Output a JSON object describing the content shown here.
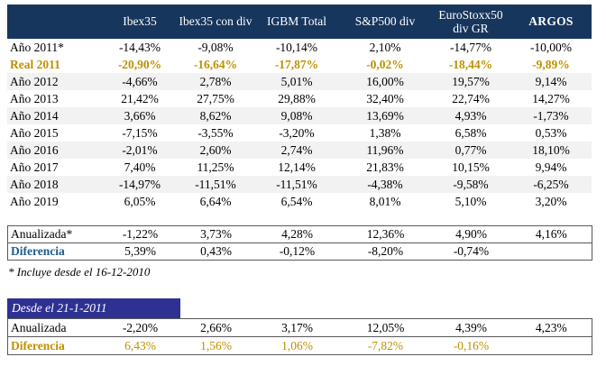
{
  "colors": {
    "header_bg": "#17365d",
    "header_text": "#ffffff",
    "row_stripe": "#f2f2f2",
    "gold_accent": "#bf9000",
    "blue_label": "#1f5c8f",
    "section_bar_bg": "#2e3192",
    "box_border": "#595959"
  },
  "table": {
    "headers": [
      "",
      "Ibex35",
      "Ibex35 con div",
      "IGBM Total",
      "S&P500 div",
      "EuroStoxx50 div GR",
      "ARGOS"
    ],
    "rows": [
      {
        "label": "Año 2011*",
        "values": [
          "-14,43%",
          "-9,08%",
          "-10,14%",
          "2,10%",
          "-14,77%",
          "-10,00%"
        ]
      },
      {
        "label": "Real 2011",
        "values": [
          "-20,90%",
          "-16,64%",
          "-17,87%",
          "-0,02%",
          "-18,44%",
          "-9,89%"
        ]
      },
      {
        "label": "Año 2012",
        "values": [
          "-4,66%",
          "2,78%",
          "5,01%",
          "16,00%",
          "19,57%",
          "9,14%"
        ]
      },
      {
        "label": "Año 2013",
        "values": [
          "21,42%",
          "27,75%",
          "29,88%",
          "32,40%",
          "22,74%",
          "14,27%"
        ]
      },
      {
        "label": "Año 2014",
        "values": [
          "3,66%",
          "8,62%",
          "9,08%",
          "13,69%",
          "4,93%",
          "-1,73%"
        ]
      },
      {
        "label": "Año 2015",
        "values": [
          "-7,15%",
          "-3,55%",
          "-3,20%",
          "1,38%",
          "6,58%",
          "0,53%"
        ]
      },
      {
        "label": "Año 2016",
        "values": [
          "-2,01%",
          "2,60%",
          "2,74%",
          "11,96%",
          "0,77%",
          "18,10%"
        ]
      },
      {
        "label": "Año 2017",
        "values": [
          "7,40%",
          "11,25%",
          "12,14%",
          "21,83%",
          "10,15%",
          "9,94%"
        ]
      },
      {
        "label": "Año 2018",
        "values": [
          "-14,97%",
          "-11,51%",
          "-11,51%",
          "-4,38%",
          "-9,58%",
          "-6,25%"
        ]
      },
      {
        "label": "Año 2019",
        "values": [
          "6,05%",
          "6,64%",
          "6,54%",
          "8,01%",
          "5,10%",
          "3,20%"
        ]
      }
    ],
    "summary": {
      "rows": [
        {
          "label": "Anualizada*",
          "values": [
            "-1,22%",
            "3,73%",
            "4,28%",
            "12,36%",
            "4,90%",
            "4,16%"
          ]
        },
        {
          "label": "Diferencia",
          "values": [
            "5,39%",
            "0,43%",
            "-0,12%",
            "-8,20%",
            "-0,74%",
            ""
          ]
        }
      ]
    },
    "footnote": "* Incluye desde el 16-12-2010"
  },
  "section2": {
    "title": "Desde el 21-1-2011",
    "rows": [
      {
        "label": "Anualizada",
        "values": [
          "-2,20%",
          "2,66%",
          "3,17%",
          "12,05%",
          "4,39%",
          "4,23%"
        ]
      },
      {
        "label": "Diferencia",
        "values": [
          "6,43%",
          "1,56%",
          "1,06%",
          "-7,82%",
          "-0,16%",
          ""
        ]
      }
    ]
  }
}
